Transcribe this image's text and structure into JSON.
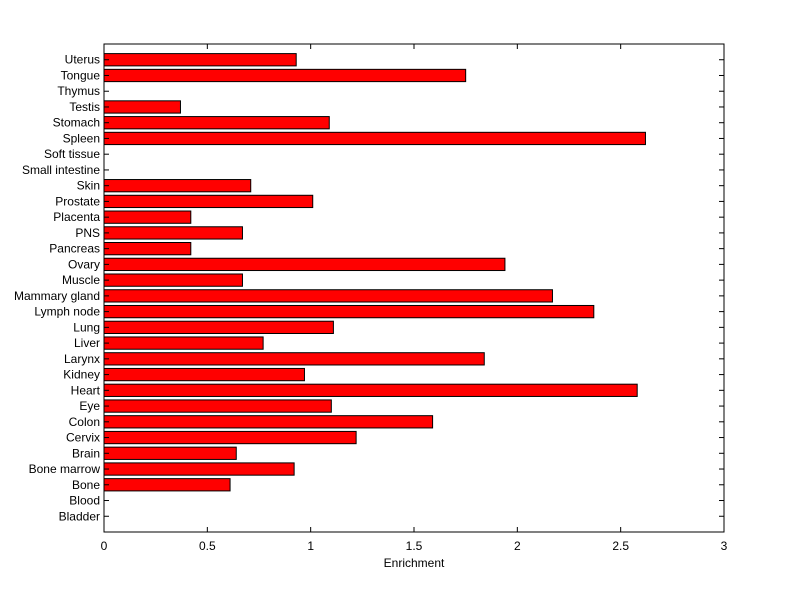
{
  "chart_data": {
    "type": "bar",
    "orientation": "horizontal",
    "title": "",
    "xlabel": "Enrichment",
    "ylabel": "",
    "xlim": [
      0,
      3
    ],
    "xticks": [
      "0",
      "0.5",
      "1",
      "1.5",
      "2",
      "2.5",
      "3"
    ],
    "grid": false,
    "bar_color": "#ff0000",
    "categories": [
      "Bladder",
      "Blood",
      "Bone",
      "Bone marrow",
      "Brain",
      "Cervix",
      "Colon",
      "Eye",
      "Heart",
      "Kidney",
      "Larynx",
      "Liver",
      "Lung",
      "Lymph node",
      "Mammary gland",
      "Muscle",
      "Ovary",
      "Pancreas",
      "PNS",
      "Placenta",
      "Prostate",
      "Skin",
      "Small intestine",
      "Soft tissue",
      "Spleen",
      "Stomach",
      "Testis",
      "Thymus",
      "Tongue",
      "Uterus"
    ],
    "values": [
      0,
      0,
      0.61,
      0.92,
      0.64,
      1.22,
      1.59,
      1.1,
      2.58,
      0.97,
      1.84,
      0.77,
      1.11,
      2.37,
      2.17,
      0.67,
      1.94,
      0.42,
      0.67,
      0.42,
      1.01,
      0.71,
      0,
      0,
      2.62,
      1.09,
      0.37,
      0,
      1.75,
      0.93
    ]
  }
}
